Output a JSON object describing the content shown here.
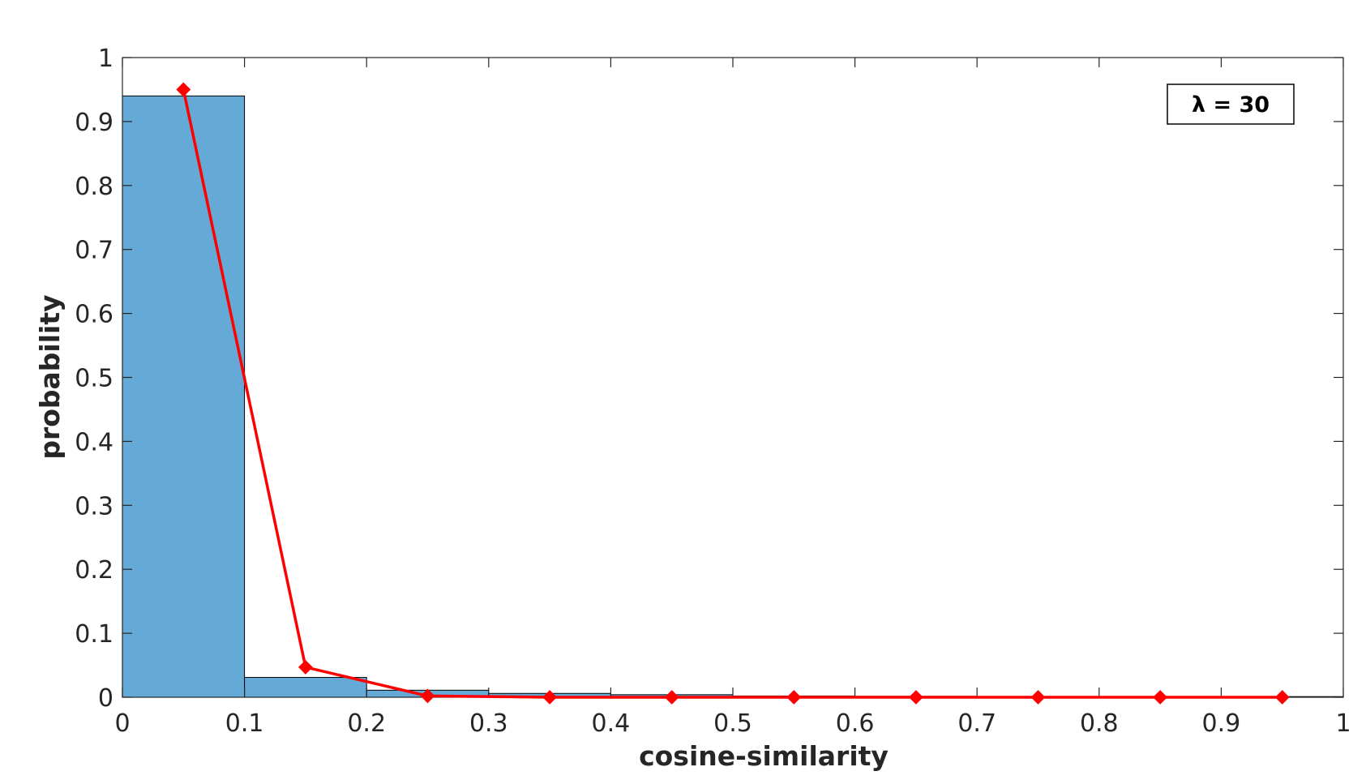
{
  "chart_data": {
    "type": "bar",
    "xlabel": "cosine-similarity",
    "ylabel": "probability",
    "xlim": [
      0,
      1
    ],
    "ylim": [
      0,
      1
    ],
    "xticks": [
      "0",
      "0.1",
      "0.2",
      "0.3",
      "0.4",
      "0.5",
      "0.6",
      "0.7",
      "0.8",
      "0.9",
      "1"
    ],
    "yticks": [
      "0",
      "0.1",
      "0.2",
      "0.3",
      "0.4",
      "0.5",
      "0.6",
      "0.7",
      "0.8",
      "0.9",
      "1"
    ],
    "bin_edges": [
      0,
      0.1,
      0.2,
      0.3,
      0.4,
      0.5,
      0.6,
      0.7,
      0.8,
      0.9,
      1.0
    ],
    "histogram_values": [
      0.94,
      0.031,
      0.011,
      0.006,
      0.004,
      0.002,
      0.0015,
      0.001,
      0.001,
      0.001
    ],
    "line": {
      "x": [
        0.05,
        0.15,
        0.25,
        0.35,
        0.45,
        0.55,
        0.65,
        0.75,
        0.85,
        0.95
      ],
      "y": [
        0.95,
        0.047,
        0.002,
        0.0,
        0.0,
        0.0,
        0.0,
        0.0,
        0.0,
        0.0
      ],
      "marker": "diamond"
    },
    "legend": {
      "text": "λ = 30",
      "placement": "top-right"
    },
    "grid": false,
    "colors": {
      "bar_fill": "#65a9d7",
      "bar_edge": "#000000",
      "line": "#ff0000",
      "axis": "#262626"
    }
  }
}
